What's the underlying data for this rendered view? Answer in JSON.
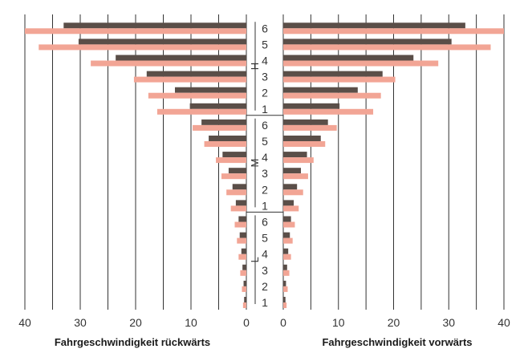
{
  "chart_data": {
    "type": "bar",
    "orientation": "horizontal-butterfly",
    "title": "",
    "xlabel_left": "Fahrgeschwindigkeit rückwärts",
    "xlabel_right": "Fahrgeschwindigkeit vorwärts",
    "x_ticks_left": [
      "40",
      "30",
      "20",
      "10",
      "0"
    ],
    "x_ticks_right": [
      "0",
      "10",
      "20",
      "30",
      "40"
    ],
    "xlim": [
      0,
      40
    ],
    "grid": true,
    "ranges": [
      {
        "label": "L",
        "gears": [
          "1",
          "2",
          "3",
          "4",
          "5",
          "6"
        ]
      },
      {
        "label": "M",
        "gears": [
          "1",
          "2",
          "3",
          "4",
          "5",
          "6"
        ]
      },
      {
        "label": "H",
        "gears": [
          "1",
          "2",
          "3",
          "4",
          "5",
          "6"
        ]
      }
    ],
    "series": [
      {
        "color": "#5a4e48",
        "reverse": [
          0.4,
          0.5,
          0.7,
          0.9,
          1.2,
          1.4,
          1.9,
          2.5,
          3.2,
          4.3,
          6.8,
          8.1,
          10.2,
          12.9,
          18.0,
          23.6,
          30.3,
          33.0
        ],
        "forward": [
          0.4,
          0.5,
          0.7,
          0.9,
          1.2,
          1.4,
          1.9,
          2.5,
          3.2,
          4.3,
          6.8,
          8.1,
          10.2,
          13.5,
          18.0,
          23.6,
          30.5,
          33.0
        ]
      },
      {
        "color": "#f2a595",
        "reverse": [
          0.6,
          0.8,
          1.1,
          1.4,
          1.7,
          2.1,
          2.8,
          3.6,
          4.5,
          5.5,
          7.6,
          9.7,
          16.1,
          17.7,
          20.3,
          28.1,
          37.5,
          40.0
        ],
        "forward": [
          0.6,
          0.8,
          1.1,
          1.4,
          1.7,
          2.1,
          2.8,
          3.6,
          4.5,
          5.5,
          7.6,
          9.7,
          16.3,
          17.7,
          20.3,
          28.1,
          37.6,
          40.0
        ]
      }
    ]
  }
}
